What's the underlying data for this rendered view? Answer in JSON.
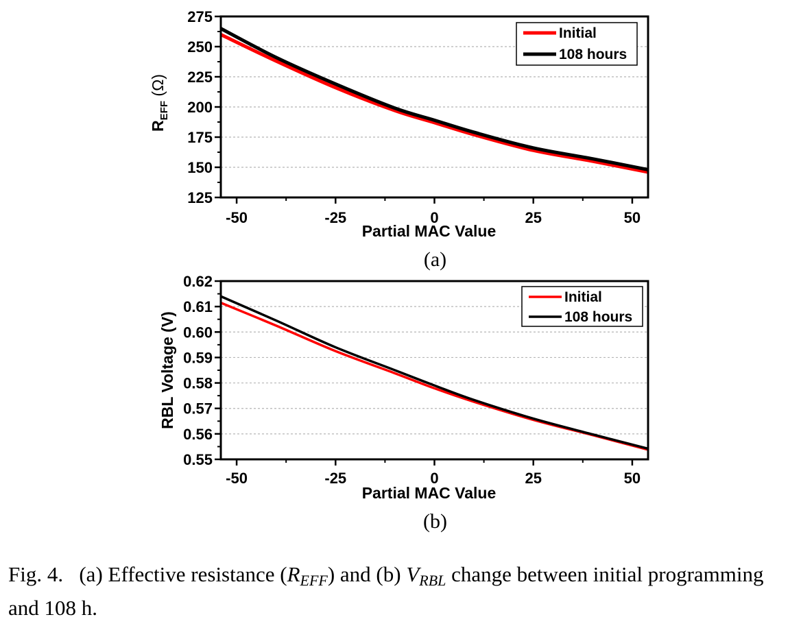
{
  "chart_data": [
    {
      "panel": "(a)",
      "type": "line",
      "xlabel": "Partial MAC Value",
      "ylabel_main": "R",
      "ylabel_sub": "EFF",
      "ylabel_unit": " (Ω)",
      "xlim": [
        -54,
        54
      ],
      "ylim": [
        125,
        275
      ],
      "xticks": [
        -50,
        -25,
        0,
        25,
        50
      ],
      "yticks": [
        125,
        150,
        175,
        200,
        225,
        250,
        275
      ],
      "ytick_labels": [
        "125",
        "150",
        "175",
        "200",
        "225",
        "250",
        "275"
      ],
      "grid": "horizontal dotted",
      "legend_position": "top-right",
      "series": [
        {
          "name": "Initial",
          "color": "#ff0000",
          "x": [
            -54,
            -40,
            -25,
            -10,
            0,
            10,
            25,
            40,
            54
          ],
          "y": [
            260,
            238,
            216,
            197,
            187,
            177,
            164,
            155,
            146
          ]
        },
        {
          "name": "108 hours",
          "color": "#000000",
          "x": [
            -54,
            -40,
            -25,
            -10,
            0,
            10,
            25,
            40,
            54
          ],
          "y": [
            265,
            241,
            219,
            199,
            189,
            179,
            166,
            157,
            148
          ]
        }
      ]
    },
    {
      "panel": "(b)",
      "type": "line",
      "xlabel": "Partial MAC Value",
      "ylabel": "RBL Voltage (V)",
      "xlim": [
        -54,
        54
      ],
      "ylim": [
        0.55,
        0.62
      ],
      "xticks": [
        -50,
        -25,
        0,
        25,
        50
      ],
      "yticks": [
        0.55,
        0.56,
        0.57,
        0.58,
        0.59,
        0.6,
        0.61,
        0.62
      ],
      "ytick_labels": [
        "0.55",
        "0.56",
        "0.57",
        "0.58",
        "0.59",
        "0.60",
        "0.61",
        "0.62"
      ],
      "grid": "horizontal dotted",
      "legend_position": "top-right",
      "series": [
        {
          "name": "Initial",
          "color": "#ff0000",
          "x": [
            -54,
            -40,
            -25,
            -10,
            0,
            10,
            25,
            40,
            54
          ],
          "y": [
            0.6115,
            0.6025,
            0.5925,
            0.5838,
            0.5779,
            0.5726,
            0.5655,
            0.5595,
            0.5538
          ]
        },
        {
          "name": "108 hours",
          "color": "#000000",
          "x": [
            -54,
            -40,
            -25,
            -10,
            0,
            10,
            25,
            40,
            54
          ],
          "y": [
            0.614,
            0.6045,
            0.594,
            0.585,
            0.579,
            0.5733,
            0.566,
            0.5598,
            0.5542
          ]
        }
      ]
    }
  ],
  "caption": {
    "label": "Fig. 4.",
    "part1": "(a) Effective resistance (",
    "r_main": "R",
    "r_sub": "EFF",
    "part2": ") and (b) ",
    "v_main": "V",
    "v_sub": "RBL",
    "part3": " change between initial programming and 108 h."
  }
}
